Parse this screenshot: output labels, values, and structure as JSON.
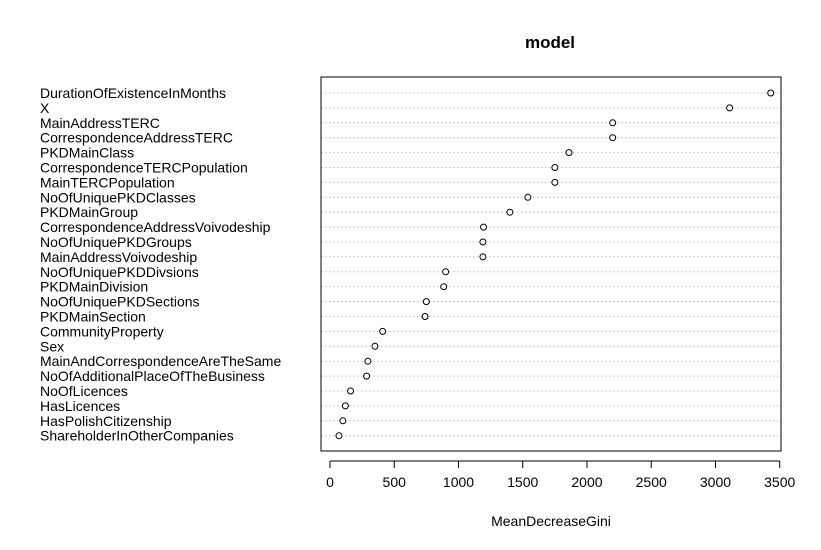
{
  "chart_data": {
    "type": "scatter",
    "title": "model",
    "xlabel": "MeanDecreaseGini",
    "ylabel": "",
    "xlim": [
      -70,
      3510
    ],
    "xticks": [
      0,
      500,
      1000,
      1500,
      2000,
      2500,
      3000,
      3500
    ],
    "grid": "dotted horizontal",
    "points": [
      {
        "name": "DurationOfExistenceInMonths",
        "value": 3430
      },
      {
        "name": "X",
        "value": 3110
      },
      {
        "name": "MainAddressTERC",
        "value": 2200
      },
      {
        "name": "CorrespondenceAddressTERC",
        "value": 2200
      },
      {
        "name": "PKDMainClass",
        "value": 1860
      },
      {
        "name": "CorrespondenceTERCPopulation",
        "value": 1750
      },
      {
        "name": "MainTERCPopulation",
        "value": 1750
      },
      {
        "name": "NoOfUniquePKDClasses",
        "value": 1540
      },
      {
        "name": "PKDMainGroup",
        "value": 1400
      },
      {
        "name": "CorrespondenceAddressVoivodeship",
        "value": 1195
      },
      {
        "name": "NoOfUniquePKDGroups",
        "value": 1190
      },
      {
        "name": "MainAddressVoivodeship",
        "value": 1190
      },
      {
        "name": "NoOfUniquePKDDivsions",
        "value": 900
      },
      {
        "name": "PKDMainDivision",
        "value": 885
      },
      {
        "name": "NoOfUniquePKDSections",
        "value": 750
      },
      {
        "name": "PKDMainSection",
        "value": 740
      },
      {
        "name": "CommunityProperty",
        "value": 410
      },
      {
        "name": "Sex",
        "value": 350
      },
      {
        "name": "MainAndCorrespondenceAreTheSame",
        "value": 295
      },
      {
        "name": "NoOfAdditionalPlaceOfTheBusiness",
        "value": 285
      },
      {
        "name": "NoOfLicences",
        "value": 160
      },
      {
        "name": "HasLicences",
        "value": 120
      },
      {
        "name": "HasPolishCitizenship",
        "value": 100
      },
      {
        "name": "ShareholderInOtherCompanies",
        "value": 70
      }
    ]
  }
}
